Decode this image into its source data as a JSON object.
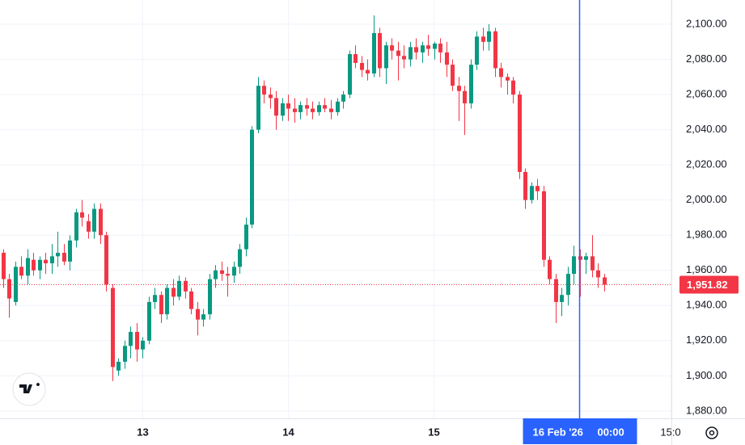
{
  "chart_data": {
    "type": "candlestick",
    "x": [
      1,
      2,
      3,
      4,
      5,
      6,
      7,
      8,
      9,
      10,
      11,
      12,
      13,
      14,
      15,
      16,
      17,
      18,
      19,
      20,
      21,
      22,
      23,
      24,
      25,
      26,
      27,
      28,
      29,
      30,
      31,
      32,
      33,
      34,
      35,
      36,
      37,
      38,
      39,
      40,
      41,
      42,
      43,
      44,
      45,
      46,
      47,
      48,
      49,
      50,
      51,
      52,
      53,
      54,
      55,
      56,
      57,
      58,
      59,
      60,
      61,
      62,
      63,
      64,
      65,
      66,
      67,
      68,
      69,
      70,
      71,
      72,
      73,
      74,
      75,
      76,
      77,
      78,
      79,
      80,
      81,
      82,
      83,
      84,
      85,
      86,
      87,
      88,
      89,
      90,
      91,
      92,
      93,
      94,
      95,
      96,
      97,
      98,
      99,
      100
    ],
    "open": [
      1970,
      1955,
      1942,
      1962,
      1957,
      1966,
      1960,
      1966,
      1964,
      1968,
      1970,
      1965,
      1977,
      1993,
      1988,
      1982,
      1995,
      1980,
      1950,
      1903,
      1908,
      1917,
      1925,
      1915,
      1920,
      1942,
      1946,
      1935,
      1950,
      1945,
      1954,
      1948,
      1938,
      1932,
      1935,
      1955,
      1960,
      1958,
      1957,
      1962,
      1972,
      1986,
      2040,
      2065,
      2060,
      2058,
      2048,
      2055,
      2052,
      2050,
      2054,
      2052,
      2050,
      2054,
      2052,
      2050,
      2056,
      2060,
      2083,
      2078,
      2074,
      2072,
      2095,
      2075,
      2088,
      2085,
      2082,
      2080,
      2087,
      2084,
      2088,
      2086,
      2089,
      2084,
      2077,
      2065,
      2062,
      2055,
      2077,
      2093,
      2090,
      2096,
      2075,
      2070,
      2068,
      2060,
      2016,
      2000,
      2008,
      2005,
      1966,
      1955,
      1942,
      1946,
      1958,
      1968,
      1966,
      1968,
      1960,
      1956
    ],
    "high": [
      1972,
      1958,
      1965,
      1968,
      1972,
      1970,
      1968,
      1970,
      1975,
      1982,
      1975,
      1980,
      1995,
      2000,
      1992,
      1998,
      1998,
      1982,
      1952,
      1910,
      1920,
      1928,
      1930,
      1922,
      1945,
      1950,
      1948,
      1952,
      1955,
      1957,
      1956,
      1950,
      1942,
      1938,
      1958,
      1963,
      1965,
      1962,
      1965,
      1975,
      1990,
      2042,
      2070,
      2068,
      2064,
      2062,
      2058,
      2060,
      2058,
      2056,
      2058,
      2056,
      2056,
      2058,
      2057,
      2058,
      2062,
      2085,
      2088,
      2082,
      2080,
      2105,
      2098,
      2090,
      2092,
      2090,
      2088,
      2090,
      2092,
      2090,
      2094,
      2090,
      2092,
      2090,
      2080,
      2070,
      2065,
      2080,
      2096,
      2098,
      2100,
      2098,
      2078,
      2072,
      2070,
      2062,
      2018,
      2010,
      2012,
      2008,
      1968,
      1958,
      1950,
      1962,
      1974,
      1972,
      1970,
      1980,
      1964,
      1958
    ],
    "low": [
      1950,
      1933,
      1940,
      1955,
      1952,
      1957,
      1955,
      1958,
      1958,
      1962,
      1963,
      1960,
      1973,
      1985,
      1978,
      1978,
      1975,
      1948,
      1897,
      1900,
      1904,
      1910,
      1908,
      1910,
      1918,
      1938,
      1930,
      1932,
      1940,
      1943,
      1944,
      1935,
      1923,
      1928,
      1932,
      1950,
      1954,
      1945,
      1953,
      1958,
      1968,
      1984,
      2038,
      2055,
      2052,
      2040,
      2045,
      2045,
      2044,
      2046,
      2048,
      2046,
      2048,
      2050,
      2046,
      2048,
      2052,
      2058,
      2075,
      2070,
      2068,
      2070,
      2070,
      2066,
      2080,
      2068,
      2075,
      2076,
      2080,
      2078,
      2082,
      2080,
      2078,
      2070,
      2062,
      2045,
      2037,
      2052,
      2074,
      2085,
      2085,
      2070,
      2064,
      2060,
      2055,
      2012,
      1995,
      1998,
      2000,
      1962,
      1952,
      1930,
      1934,
      1940,
      1952,
      1945,
      1958,
      1956,
      1950,
      1948
    ],
    "close": [
      1955,
      1944,
      1962,
      1957,
      1967,
      1960,
      1966,
      1964,
      1968,
      1970,
      1965,
      1977,
      1993,
      1990,
      1982,
      1995,
      1980,
      1952,
      1905,
      1908,
      1917,
      1925,
      1915,
      1920,
      1942,
      1946,
      1935,
      1950,
      1945,
      1954,
      1948,
      1938,
      1932,
      1935,
      1955,
      1960,
      1958,
      1957,
      1962,
      1972,
      1986,
      2040,
      2065,
      2060,
      2058,
      2048,
      2055,
      2052,
      2050,
      2054,
      2052,
      2050,
      2054,
      2052,
      2050,
      2056,
      2060,
      2083,
      2078,
      2074,
      2072,
      2095,
      2075,
      2088,
      2085,
      2082,
      2080,
      2087,
      2084,
      2088,
      2086,
      2089,
      2084,
      2077,
      2065,
      2062,
      2055,
      2077,
      2093,
      2090,
      2096,
      2075,
      2070,
      2068,
      2060,
      2016,
      2000,
      2008,
      2005,
      1966,
      1955,
      1942,
      1946,
      1958,
      1968,
      1966,
      1968,
      1960,
      1956,
      1951.82
    ],
    "up_color": "#089981",
    "down_color": "#f23645",
    "xlim": [
      0.47,
      111.13
    ],
    "xticks": [
      {
        "value": 24,
        "label": "13"
      },
      {
        "value": 48,
        "label": "14"
      },
      {
        "value": 72,
        "label": "15"
      },
      {
        "value": 111,
        "label": "15:0"
      }
    ],
    "ylim": [
      1875.8,
      2113.8
    ],
    "yticks": [
      {
        "value": 1880,
        "label": "1,880.00"
      },
      {
        "value": 1900,
        "label": "1,900.00"
      },
      {
        "value": 1920,
        "label": "1,920.00"
      },
      {
        "value": 1940,
        "label": "1,940.00"
      },
      {
        "value": 1960,
        "label": "1,960.00"
      },
      {
        "value": 1980,
        "label": "1,980.00"
      },
      {
        "value": 2000,
        "label": "2,000.00"
      },
      {
        "value": 2020,
        "label": "2,020.00"
      },
      {
        "value": 2040,
        "label": "2,040.00"
      },
      {
        "value": 2060,
        "label": "2,060.00"
      },
      {
        "value": 2080,
        "label": "2,080.00"
      },
      {
        "value": 2100,
        "label": "2,100.00"
      }
    ],
    "grid": true,
    "last_price": {
      "value": 1951.82,
      "label": "1,951.82"
    },
    "crosshair": {
      "x": 96,
      "date": "16 Feb '26",
      "time": "00:00",
      "color": "#2962ff"
    }
  }
}
